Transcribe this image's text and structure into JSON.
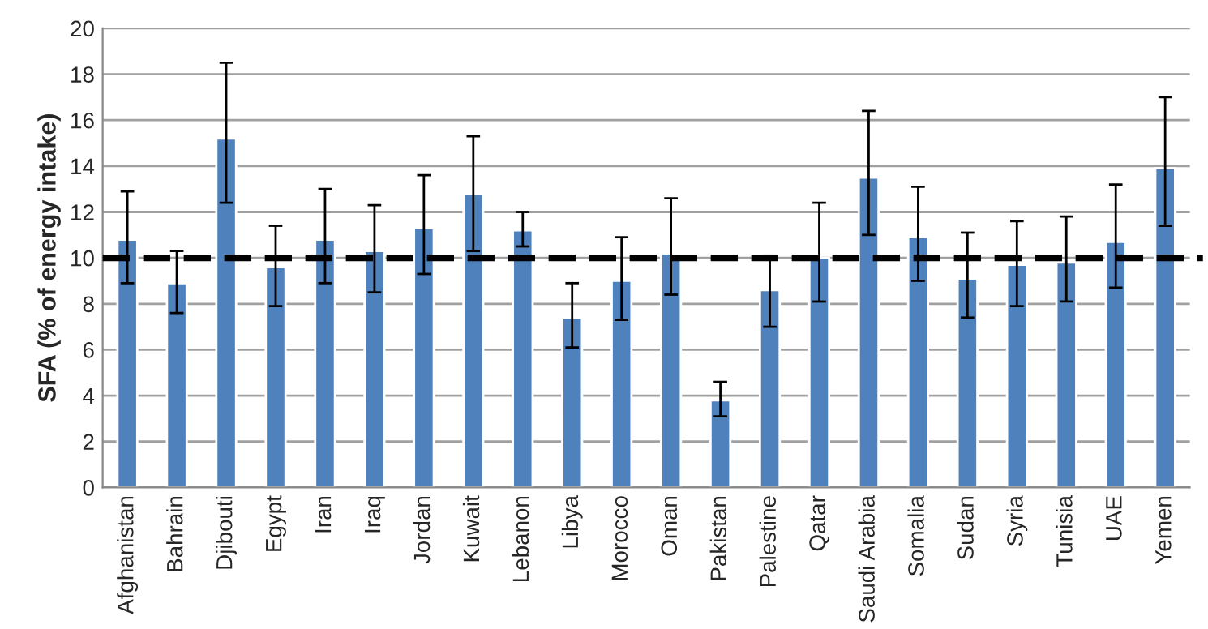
{
  "chart_data": {
    "type": "bar",
    "ylabel": "SFA (% of energy intake)",
    "categories": [
      "Afghanistan",
      "Bahrain",
      "Djibouti",
      "Egypt",
      "Iran",
      "Iraq",
      "Jordan",
      "Kuwait",
      "Lebanon",
      "Libya",
      "Morocco",
      "Oman",
      "Pakistan",
      "Palestine",
      "Qatar",
      "Saudi Arabia",
      "Somalia",
      "Sudan",
      "Syria",
      "Tunisia",
      "UAE",
      "Yemen"
    ],
    "values": [
      10.8,
      8.9,
      15.2,
      9.6,
      10.8,
      10.3,
      11.3,
      12.8,
      11.2,
      7.4,
      9.0,
      10.2,
      3.8,
      8.6,
      10.0,
      13.5,
      10.9,
      9.1,
      9.7,
      9.8,
      10.7,
      13.9
    ],
    "errors": [
      [
        8.9,
        12.9
      ],
      [
        7.6,
        10.3
      ],
      [
        12.4,
        18.5
      ],
      [
        7.9,
        11.4
      ],
      [
        8.9,
        13.0
      ],
      [
        8.5,
        12.3
      ],
      [
        9.3,
        13.6
      ],
      [
        10.3,
        15.3
      ],
      [
        10.5,
        12.0
      ],
      [
        6.1,
        8.9
      ],
      [
        7.3,
        10.9
      ],
      [
        8.4,
        12.6
      ],
      [
        3.1,
        4.6
      ],
      [
        7.0,
        10.1
      ],
      [
        8.1,
        12.4
      ],
      [
        11.0,
        16.4
      ],
      [
        9.0,
        13.1
      ],
      [
        7.4,
        11.1
      ],
      [
        7.9,
        11.6
      ],
      [
        8.1,
        11.8
      ],
      [
        8.7,
        13.2
      ],
      [
        11.4,
        17.0
      ]
    ],
    "color": "#4f81bd",
    "ylim": [
      0,
      20
    ],
    "yticks": [
      0,
      2,
      4,
      6,
      8,
      10,
      12,
      14,
      16,
      18,
      20
    ],
    "grid": "y",
    "ref_lines": [
      {
        "axis": "y",
        "value": 10,
        "color": "#000000",
        "line_style": "dashed"
      }
    ]
  }
}
